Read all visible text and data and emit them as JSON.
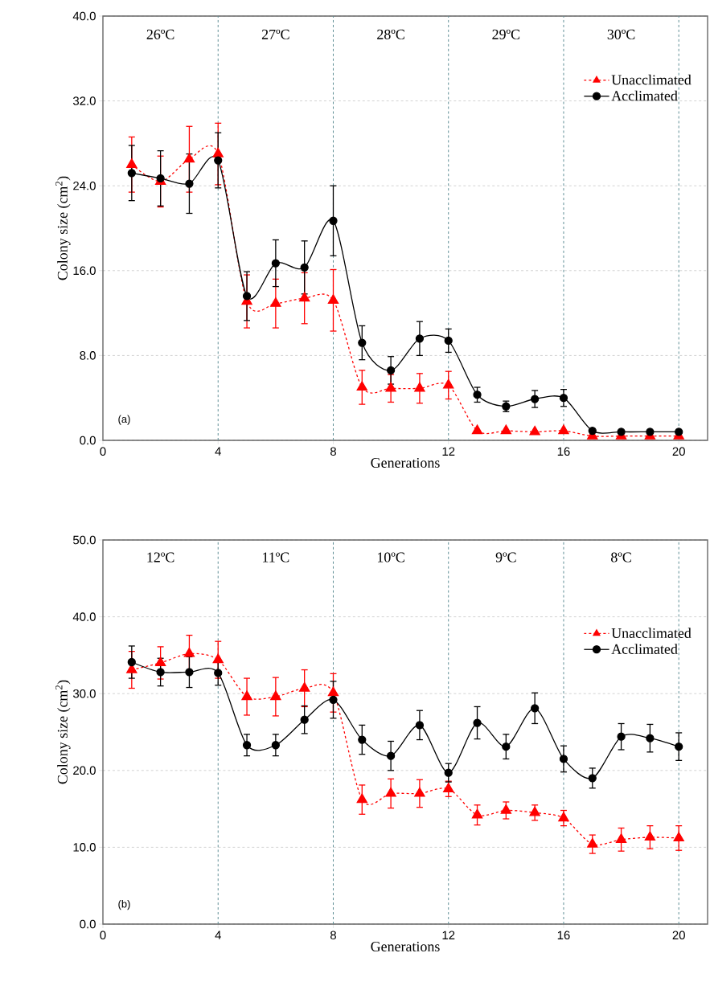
{
  "chart_data": [
    {
      "type": "line",
      "xlabel": "Generations",
      "ylabel": "Colony size (cm$^{2}$)",
      "xlim": [
        0,
        21
      ],
      "xticks": [
        0,
        4,
        8,
        12,
        16,
        20
      ],
      "ylim": [
        0,
        40
      ],
      "yticks": [
        {
          "value": 0,
          "label": "0.0"
        },
        {
          "value": 8,
          "label": "8.0"
        },
        {
          "value": 16,
          "label": "16.0"
        },
        {
          "value": 24,
          "label": "24.0"
        },
        {
          "value": 32,
          "label": "32.0"
        },
        {
          "value": 40,
          "label": "40.0"
        }
      ],
      "grid": "y",
      "legend": "top right",
      "x": [
        1,
        2,
        3,
        4,
        5,
        6,
        7,
        8,
        9,
        10,
        11,
        12,
        13,
        14,
        15,
        16,
        17,
        18,
        19,
        20
      ],
      "series": [
        {
          "name": "Unacclimated",
          "color": "#ff0000",
          "marker": "triangle",
          "line_style": "dashed",
          "values": [
            26.0,
            24.4,
            26.5,
            27.0,
            13.1,
            12.9,
            13.4,
            13.2,
            5.0,
            4.9,
            4.9,
            5.2,
            0.9,
            0.9,
            0.8,
            0.9,
            0.4,
            0.4,
            0.4,
            0.4
          ],
          "errors": [
            2.6,
            2.4,
            3.1,
            2.9,
            2.5,
            2.3,
            2.4,
            2.9,
            1.6,
            1.3,
            1.4,
            1.3,
            null,
            null,
            null,
            null,
            null,
            null,
            null,
            null
          ]
        },
        {
          "name": "Acclimated",
          "color": "#000000",
          "marker": "circle",
          "line_style": "solid",
          "values": [
            25.2,
            24.7,
            24.2,
            26.4,
            13.6,
            16.7,
            16.3,
            20.7,
            9.2,
            6.6,
            9.6,
            9.4,
            4.3,
            3.2,
            3.9,
            4.0,
            0.9,
            0.8,
            0.8,
            0.8
          ],
          "errors": [
            2.6,
            2.6,
            2.8,
            2.6,
            2.3,
            2.2,
            2.5,
            3.3,
            1.6,
            1.3,
            1.6,
            1.1,
            0.7,
            0.5,
            0.8,
            0.8,
            null,
            null,
            null,
            null
          ]
        }
      ],
      "ref_lines": [
        {
          "axis": "x",
          "value": 4,
          "color": "#5f8f96",
          "line_style": "dashed"
        },
        {
          "axis": "x",
          "value": 8,
          "color": "#5f8f96",
          "line_style": "dashed"
        },
        {
          "axis": "x",
          "value": 12,
          "color": "#5f8f96",
          "line_style": "dashed"
        },
        {
          "axis": "x",
          "value": 16,
          "color": "#5f8f96",
          "line_style": "dashed"
        },
        {
          "axis": "x",
          "value": 20,
          "color": "#5f8f96",
          "line_style": "dashed"
        }
      ],
      "annotations": [
        "26ºC",
        "27ºC",
        "28ºC",
        "29ºC",
        "30ºC",
        "(a)"
      ]
    },
    {
      "type": "line",
      "xlabel": "Generations",
      "ylabel": "Colony size (cm$^{2}$)",
      "xlim": [
        0,
        21
      ],
      "xticks": [
        0,
        4,
        8,
        12,
        16,
        20
      ],
      "ylim": [
        0,
        50
      ],
      "yticks": [
        {
          "value": 0,
          "label": "0.0"
        },
        {
          "value": 10,
          "label": "10.0"
        },
        {
          "value": 20,
          "label": "20.0"
        },
        {
          "value": 30,
          "label": "30.0"
        },
        {
          "value": 40,
          "label": "40.0"
        },
        {
          "value": 50,
          "label": "50.0"
        }
      ],
      "grid": "y",
      "legend": "right",
      "x": [
        1,
        2,
        3,
        4,
        5,
        6,
        7,
        8,
        9,
        10,
        11,
        12,
        13,
        14,
        15,
        16,
        17,
        18,
        19,
        20
      ],
      "series": [
        {
          "name": "Unacclimated",
          "color": "#ff0000",
          "marker": "triangle",
          "line_style": "dashed",
          "values": [
            33.1,
            34.0,
            35.2,
            34.4,
            29.6,
            29.6,
            30.7,
            30.1,
            16.2,
            17.0,
            17.0,
            17.6,
            14.2,
            14.8,
            14.5,
            13.8,
            10.4,
            11.0,
            11.3,
            11.2
          ],
          "errors": [
            2.4,
            2.1,
            2.4,
            2.4,
            2.4,
            2.5,
            2.4,
            2.5,
            1.9,
            1.9,
            1.8,
            1.0,
            1.3,
            1.1,
            1.0,
            1.0,
            1.2,
            1.5,
            1.5,
            1.6
          ]
        },
        {
          "name": "Acclimated",
          "color": "#000000",
          "marker": "circle",
          "line_style": "solid",
          "values": [
            34.1,
            32.8,
            32.8,
            32.7,
            23.3,
            23.3,
            26.6,
            29.2,
            24.0,
            21.9,
            25.9,
            19.7,
            26.2,
            23.1,
            28.1,
            21.5,
            19.0,
            24.4,
            24.2,
            23.1
          ],
          "errors": [
            2.1,
            1.8,
            2.0,
            1.6,
            1.4,
            1.4,
            1.8,
            2.4,
            1.9,
            1.9,
            1.9,
            1.2,
            2.1,
            1.6,
            2.0,
            1.7,
            1.3,
            1.7,
            1.8,
            1.8
          ]
        }
      ],
      "ref_lines": [
        {
          "axis": "x",
          "value": 4,
          "color": "#5f8f96",
          "line_style": "dashed"
        },
        {
          "axis": "x",
          "value": 8,
          "color": "#5f8f96",
          "line_style": "dashed"
        },
        {
          "axis": "x",
          "value": 12,
          "color": "#5f8f96",
          "line_style": "dashed"
        },
        {
          "axis": "x",
          "value": 16,
          "color": "#5f8f96",
          "line_style": "dashed"
        },
        {
          "axis": "x",
          "value": 20,
          "color": "#5f8f96",
          "line_style": "dashed"
        }
      ],
      "annotations": [
        "12ºC",
        "11ºC",
        "10ºC",
        "9ºC",
        "8ºC",
        "(b)"
      ]
    }
  ]
}
